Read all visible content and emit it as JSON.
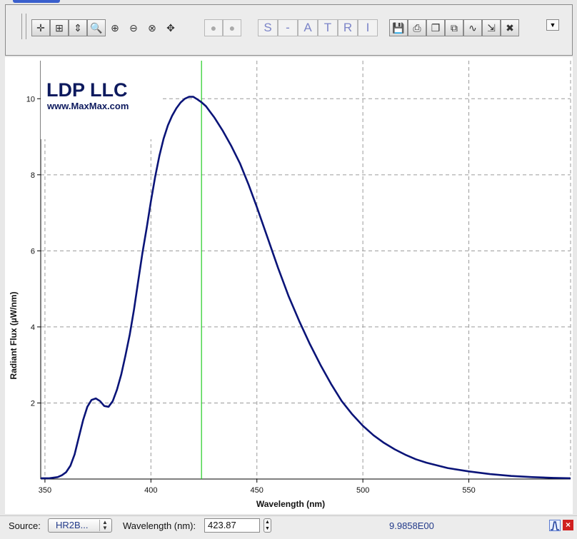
{
  "toolbar": {
    "zoom_group": [
      {
        "name": "crosshair-icon",
        "glyph": "✛"
      },
      {
        "name": "zoom-fit-icon",
        "glyph": "⊞"
      },
      {
        "name": "zoom-vertical-icon",
        "glyph": "⇕"
      },
      {
        "name": "zoom-auto-icon",
        "glyph": "🔍"
      },
      {
        "name": "zoom-in-icon",
        "glyph": "⊕"
      },
      {
        "name": "zoom-out-icon",
        "glyph": "⊖"
      },
      {
        "name": "zoom-reset-icon",
        "glyph": "⊗"
      },
      {
        "name": "pan-icon",
        "glyph": "✥"
      }
    ],
    "bulbs": [
      {
        "name": "bulb-dark-icon",
        "glyph": "●"
      },
      {
        "name": "bulb-light-icon",
        "glyph": "●"
      }
    ],
    "modes": [
      "S",
      "-",
      "A",
      "T",
      "R",
      "I"
    ],
    "file_group": [
      {
        "name": "save-icon",
        "glyph": "💾"
      },
      {
        "name": "print-icon",
        "glyph": "⎙"
      },
      {
        "name": "copy-icon",
        "glyph": "❐"
      },
      {
        "name": "duplicate-icon",
        "glyph": "⧉"
      },
      {
        "name": "curve-icon",
        "glyph": "∿"
      },
      {
        "name": "export-icon",
        "glyph": "⇲"
      },
      {
        "name": "delete-icon",
        "glyph": "✖"
      }
    ],
    "dropdown_glyph": "▼"
  },
  "logo": {
    "line1": "LDP LLC",
    "line2": "www.MaxMax.com"
  },
  "chart_data": {
    "type": "line",
    "xlabel": "Wavelength (nm)",
    "ylabel": "Radiant Flux (µW/nm)",
    "xlim": [
      348,
      598
    ],
    "ylim": [
      0,
      11
    ],
    "xticks": [
      350,
      400,
      450,
      500,
      550
    ],
    "yticks": [
      2,
      4,
      6,
      8,
      10
    ],
    "grid": true,
    "cursor_x": 423.87,
    "colors": {
      "series": "#0a1478",
      "cursor": "#22cc22",
      "grid": "#9a9a9a"
    },
    "series": [
      {
        "x": [
          348,
          352,
          356,
          358,
          360,
          362,
          364,
          366,
          368,
          370,
          372,
          374,
          376,
          378,
          380,
          382,
          384,
          386,
          388,
          390,
          392,
          394,
          396,
          398,
          400,
          402,
          404,
          406,
          408,
          410,
          412,
          414,
          416,
          418,
          420,
          422,
          424,
          426,
          428,
          430,
          434,
          438,
          442,
          446,
          450,
          455,
          460,
          465,
          470,
          475,
          480,
          485,
          490,
          495,
          500,
          505,
          510,
          515,
          520,
          525,
          530,
          540,
          550,
          560,
          570,
          580,
          590,
          598
        ],
        "y": [
          0.02,
          0.02,
          0.05,
          0.1,
          0.18,
          0.35,
          0.65,
          1.1,
          1.55,
          1.9,
          2.08,
          2.12,
          2.05,
          1.92,
          1.9,
          2.05,
          2.35,
          2.75,
          3.25,
          3.8,
          4.45,
          5.2,
          5.95,
          6.6,
          7.3,
          7.95,
          8.5,
          8.95,
          9.3,
          9.55,
          9.75,
          9.9,
          10.0,
          10.05,
          10.05,
          9.98,
          9.9,
          9.8,
          9.65,
          9.5,
          9.15,
          8.75,
          8.3,
          7.75,
          7.15,
          6.35,
          5.55,
          4.8,
          4.15,
          3.55,
          3.0,
          2.5,
          2.05,
          1.7,
          1.4,
          1.15,
          0.95,
          0.78,
          0.64,
          0.52,
          0.43,
          0.29,
          0.2,
          0.13,
          0.08,
          0.05,
          0.03,
          0.02
        ]
      }
    ]
  },
  "status": {
    "source_label": "Source:",
    "source_value": "HR2B...",
    "wavelength_label": "Wavelength (nm):",
    "wavelength_value": "423.87",
    "readout": "9.9858E00"
  }
}
